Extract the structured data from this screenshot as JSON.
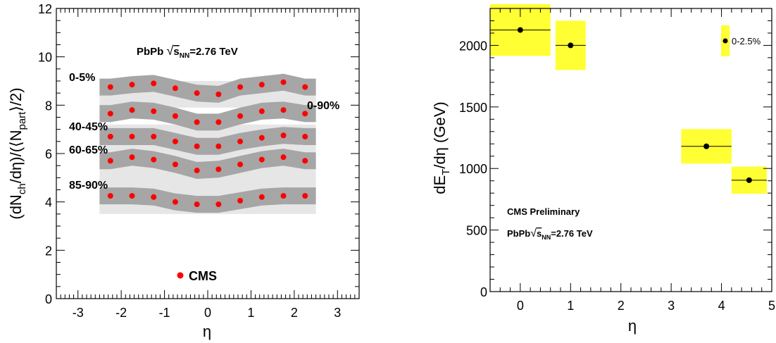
{
  "chart_data": [
    {
      "type": "scatter",
      "xlabel": "η",
      "ylabel": "(dN_ch/dη)/(⟨N_part⟩/2)",
      "xlim": [
        -3.5,
        3.5
      ],
      "ylim": [
        0,
        12
      ],
      "x_ticks": [
        "-3",
        "-2",
        "-1",
        "0",
        "1",
        "2",
        "3"
      ],
      "y_ticks": [
        "0",
        "2",
        "4",
        "6",
        "8",
        "10",
        "12"
      ],
      "x": [
        -2.25,
        -1.75,
        -1.25,
        -0.75,
        -0.25,
        0.25,
        0.75,
        1.25,
        1.75,
        2.25
      ],
      "series": [
        {
          "name": "0-5%",
          "values": [
            8.75,
            8.85,
            8.9,
            8.7,
            8.5,
            8.45,
            8.75,
            8.85,
            8.95,
            8.75
          ]
        },
        {
          "name": "40-45%",
          "values": [
            7.65,
            7.8,
            7.75,
            7.55,
            7.3,
            7.3,
            7.55,
            7.75,
            7.8,
            7.65
          ]
        },
        {
          "name": "",
          "values": [
            6.7,
            6.7,
            6.7,
            6.5,
            6.3,
            6.3,
            6.5,
            6.65,
            6.75,
            6.7
          ]
        },
        {
          "name": "60-65%",
          "values": [
            5.7,
            5.85,
            5.75,
            5.55,
            5.3,
            5.35,
            5.55,
            5.75,
            5.85,
            5.7
          ]
        },
        {
          "name": "85-90%",
          "values": [
            4.25,
            4.25,
            4.2,
            4.0,
            3.9,
            3.9,
            4.05,
            4.2,
            4.25,
            4.25
          ]
        }
      ],
      "syst_band_width": 0.35,
      "outer_band": {
        "top": [
          9.0,
          8.6,
          7.2,
          6.3,
          5.6
        ],
        "bottom": [
          8.3,
          7.9,
          5.8,
          4.7,
          3.5
        ]
      },
      "side_label": "0-90%",
      "annotation": "PbPb √s_NN=2.76 TeV",
      "legend": "CMS",
      "colors": {
        "points": "#ff0000",
        "band": "#a6a6a6",
        "outer_band": "#e6e6e6"
      }
    },
    {
      "type": "scatter",
      "xlabel": "η",
      "ylabel": "dE_T/dη (GeV)",
      "xlim": [
        -0.6,
        5.0
      ],
      "ylim": [
        0,
        2300
      ],
      "x_ticks": [
        "0",
        "1",
        "2",
        "3",
        "4",
        "5"
      ],
      "y_ticks": [
        "0",
        "500",
        "1000",
        "1500",
        "2000"
      ],
      "points": [
        {
          "x": 0,
          "y": 2125,
          "xerr": 0.6,
          "syst": 210
        },
        {
          "x": 1,
          "y": 2000,
          "xerr": 0.3,
          "syst": 200
        },
        {
          "x": 3.7,
          "y": 1180,
          "xerr": 0.5,
          "syst": 140
        },
        {
          "x": 4.55,
          "y": 905,
          "xerr": 0.35,
          "syst": 110
        }
      ],
      "legend": "0-2.5%",
      "annotation_1": "CMS Preliminary",
      "annotation_2": "PbPb √s_NN=2.76 TeV",
      "colors": {
        "points": "#000000",
        "box": "#ffff33"
      }
    }
  ]
}
